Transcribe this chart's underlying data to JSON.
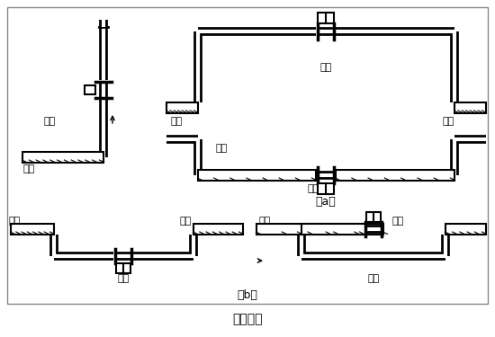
{
  "title": "图（四）",
  "label_a": "（a）",
  "label_b": "（b）",
  "bg_color": "#ffffff",
  "line_color": "#000000",
  "text_zhengque": "正确",
  "text_cuowu": "错误",
  "text_yeti": "液体",
  "text_qipao": "气泡",
  "font_size_label": 9,
  "font_size_text": 8,
  "font_size_title": 10,
  "border_color": "#888888"
}
